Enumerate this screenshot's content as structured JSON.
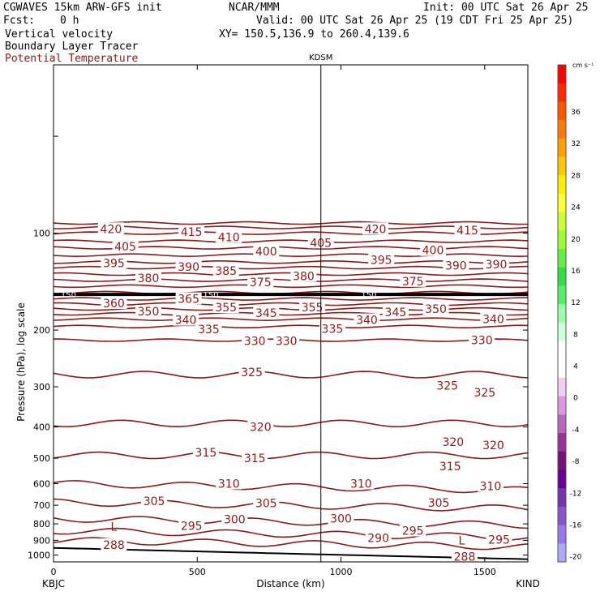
{
  "header": {
    "model": "CGWAVES 15km ARW-GFS init",
    "org": "NCAR/MMM",
    "init": "Init: 00 UTC Sat 26 Apr 25",
    "fcst_label": "Fcst:",
    "fcst_value": "0 h",
    "valid": "Valid: 00 UTC Sat 26 Apr 25 (19 CDT Fri 25 Apr 25)",
    "xy": "XY= 150.5,136.9 to 260.4,139.6",
    "field1": "Vertical velocity",
    "field2": "Boundary Layer Tracer",
    "field3": "Potential Temperature"
  },
  "colors": {
    "contour": "#8b1a1a",
    "tropopause": "#000000",
    "terrain": "#000000"
  },
  "chart_data": {
    "type": "contour",
    "xlabel": "Distance (km)",
    "ylabel": "Pressure (hPa), log scale",
    "xlim": [
      0,
      1650
    ],
    "ylim": [
      1050,
      30
    ],
    "y_scale": "log",
    "x_ticks": [
      0,
      500,
      1000,
      1500
    ],
    "y_ticks": [
      100,
      200,
      300,
      400,
      500,
      600,
      700,
      800,
      900,
      1000
    ],
    "station_left": "KBJC",
    "station_right": "KIND",
    "station_mid": "KDSM",
    "station_mid_x": 930,
    "tropopause_label": "150",
    "colorbar": {
      "units": "cm s⁻¹",
      "ticks": [
        "36",
        "32",
        "28",
        "24",
        "20",
        "16",
        "12",
        "8",
        "4",
        "0",
        "-4",
        "-8",
        "-12",
        "-16",
        "-20"
      ],
      "colors": [
        "#ff0000",
        "#ff2a00",
        "#ff5500",
        "#ff7a00",
        "#ffa200",
        "#ffc800",
        "#ffee00",
        "#ffff33",
        "#ccff33",
        "#99ff33",
        "#66ee44",
        "#33dd44",
        "#55ee66",
        "#99ffaa",
        "#ccffdd",
        "#ffffff",
        "#ffffff",
        "#f2ccf2",
        "#dd99dd",
        "#bb66bb",
        "#993399",
        "#771177",
        "#660099",
        "#7733aa",
        "#8855cc",
        "#9977ee",
        "#aaaaff"
      ]
    },
    "contour_labels": [
      {
        "text": "420",
        "x": 200,
        "y": 97
      },
      {
        "text": "415",
        "x": 480,
        "y": 99
      },
      {
        "text": "410",
        "x": 610,
        "y": 103
      },
      {
        "text": "405",
        "x": 250,
        "y": 110
      },
      {
        "text": "400",
        "x": 740,
        "y": 114
      },
      {
        "text": "405",
        "x": 930,
        "y": 107
      },
      {
        "text": "420",
        "x": 1120,
        "y": 97
      },
      {
        "text": "415",
        "x": 1440,
        "y": 98
      },
      {
        "text": "395",
        "x": 210,
        "y": 124
      },
      {
        "text": "390",
        "x": 470,
        "y": 127
      },
      {
        "text": "385",
        "x": 600,
        "y": 131
      },
      {
        "text": "395",
        "x": 1140,
        "y": 121
      },
      {
        "text": "400",
        "x": 1320,
        "y": 113
      },
      {
        "text": "390",
        "x": 1400,
        "y": 126
      },
      {
        "text": "390",
        "x": 1540,
        "y": 125
      },
      {
        "text": "380",
        "x": 330,
        "y": 138
      },
      {
        "text": "375",
        "x": 720,
        "y": 142
      },
      {
        "text": "380",
        "x": 870,
        "y": 136
      },
      {
        "text": "375",
        "x": 1250,
        "y": 141
      },
      {
        "text": "360",
        "x": 210,
        "y": 165
      },
      {
        "text": "365",
        "x": 470,
        "y": 160
      },
      {
        "text": "355",
        "x": 600,
        "y": 170
      },
      {
        "text": "345",
        "x": 740,
        "y": 177
      },
      {
        "text": "355",
        "x": 900,
        "y": 170
      },
      {
        "text": "345",
        "x": 1190,
        "y": 176
      },
      {
        "text": "350",
        "x": 1330,
        "y": 172
      },
      {
        "text": "350",
        "x": 330,
        "y": 175
      },
      {
        "text": "340",
        "x": 460,
        "y": 186
      },
      {
        "text": "340",
        "x": 1090,
        "y": 186
      },
      {
        "text": "340",
        "x": 1530,
        "y": 185
      },
      {
        "text": "335",
        "x": 540,
        "y": 199
      },
      {
        "text": "335",
        "x": 970,
        "y": 198
      },
      {
        "text": "330",
        "x": 700,
        "y": 216
      },
      {
        "text": "330",
        "x": 810,
        "y": 216
      },
      {
        "text": "330",
        "x": 1490,
        "y": 215
      },
      {
        "text": "325",
        "x": 690,
        "y": 270
      },
      {
        "text": "325",
        "x": 1370,
        "y": 297
      },
      {
        "text": "325",
        "x": 1500,
        "y": 312
      },
      {
        "text": "320",
        "x": 720,
        "y": 400
      },
      {
        "text": "320",
        "x": 1390,
        "y": 445
      },
      {
        "text": "320",
        "x": 1530,
        "y": 455
      },
      {
        "text": "315",
        "x": 530,
        "y": 480
      },
      {
        "text": "315",
        "x": 700,
        "y": 500
      },
      {
        "text": "315",
        "x": 1380,
        "y": 530
      },
      {
        "text": "310",
        "x": 610,
        "y": 600
      },
      {
        "text": "310",
        "x": 1070,
        "y": 600
      },
      {
        "text": "310",
        "x": 1520,
        "y": 610
      },
      {
        "text": "305",
        "x": 350,
        "y": 680
      },
      {
        "text": "305",
        "x": 740,
        "y": 690
      },
      {
        "text": "305",
        "x": 1340,
        "y": 688
      },
      {
        "text": "300",
        "x": 630,
        "y": 775
      },
      {
        "text": "300",
        "x": 1000,
        "y": 770
      },
      {
        "text": "295",
        "x": 480,
        "y": 810
      },
      {
        "text": "295",
        "x": 1250,
        "y": 840
      },
      {
        "text": "295",
        "x": 1550,
        "y": 895
      },
      {
        "text": "290",
        "x": 1130,
        "y": 885
      },
      {
        "text": "288",
        "x": 210,
        "y": 930
      },
      {
        "text": "288",
        "x": 1430,
        "y": 1010
      }
    ],
    "low_markers": [
      {
        "text": "L",
        "x": 210,
        "y": 815
      },
      {
        "text": "L",
        "x": 1420,
        "y": 900
      }
    ],
    "theta_levels": [
      {
        "theta": 420,
        "p": 93
      },
      {
        "theta": 415,
        "p": 96
      },
      {
        "theta": 410,
        "p": 100
      },
      {
        "theta": 405,
        "p": 106
      },
      {
        "theta": 400,
        "p": 111
      },
      {
        "theta": 395,
        "p": 117
      },
      {
        "theta": 390,
        "p": 123
      },
      {
        "theta": 385,
        "p": 128
      },
      {
        "theta": 380,
        "p": 134
      },
      {
        "theta": 375,
        "p": 140
      },
      {
        "theta": 370,
        "p": 146
      },
      {
        "theta": 365,
        "p": 153
      },
      {
        "theta": 360,
        "p": 160
      },
      {
        "theta": 355,
        "p": 166
      },
      {
        "theta": 350,
        "p": 172
      },
      {
        "theta": 345,
        "p": 178
      },
      {
        "theta": 340,
        "p": 185
      },
      {
        "theta": 335,
        "p": 195
      },
      {
        "theta": 330,
        "p": 215
      },
      {
        "theta": 325,
        "p": 275
      },
      {
        "theta": 320,
        "p": 390
      },
      {
        "theta": 315,
        "p": 490
      },
      {
        "theta": 310,
        "p": 600
      },
      {
        "theta": 305,
        "p": 685
      },
      {
        "theta": 300,
        "p": 770
      },
      {
        "theta": 295,
        "p": 840
      },
      {
        "theta": 290,
        "p": 900
      }
    ]
  }
}
